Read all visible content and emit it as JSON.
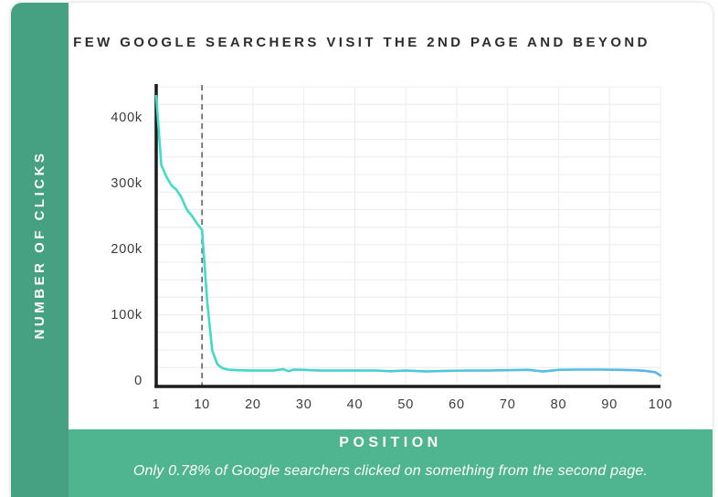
{
  "card": {
    "title": "FEW GOOGLE SEARCHERS VISIT THE 2ND PAGE AND BEYOND"
  },
  "colors": {
    "left_band": "#46A183",
    "bottom_band": "#4FB490",
    "line_gradient_start": "#3EDEC3",
    "line_gradient_end": "#58B6E8",
    "axis": "#1c1c1c",
    "grid": "#ececec",
    "dashed_line": "#6e6e6e",
    "tick_label": "#3b3b3b",
    "title_text": "#2d2d2d",
    "band_text": "#ffffff"
  },
  "chart_data": {
    "type": "line",
    "title": "FEW GOOGLE SEARCHERS VISIT THE 2ND PAGE AND BEYOND",
    "xlabel": "POSITION",
    "ylabel": "NUMBER OF CLICKS",
    "caption": "Only 0.78% of Google searchers clicked on something from the second page.",
    "xlim": [
      1,
      100
    ],
    "ylim": [
      0,
      450000
    ],
    "grid": true,
    "dashed_marker_x": 10,
    "x_ticks": [
      {
        "label": "1",
        "value": 1
      },
      {
        "label": "10",
        "value": 10
      },
      {
        "label": "20",
        "value": 20
      },
      {
        "label": "30",
        "value": 30
      },
      {
        "label": "40",
        "value": 40
      },
      {
        "label": "50",
        "value": 50
      },
      {
        "label": "60",
        "value": 60
      },
      {
        "label": "70",
        "value": 70
      },
      {
        "label": "80",
        "value": 80
      },
      {
        "label": "90",
        "value": 90
      },
      {
        "label": "100",
        "value": 100
      }
    ],
    "y_ticks": [
      {
        "label": "0",
        "value": 0
      },
      {
        "label": "100k",
        "value": 100000
      },
      {
        "label": "200k",
        "value": 200000
      },
      {
        "label": "300k",
        "value": 300000
      },
      {
        "label": "400k",
        "value": 400000
      }
    ],
    "series": [
      {
        "name": "clicks-by-position",
        "points": [
          [
            1,
            432000
          ],
          [
            2,
            327000
          ],
          [
            3,
            309000
          ],
          [
            4,
            296000
          ],
          [
            5,
            289000
          ],
          [
            6,
            277000
          ],
          [
            7,
            259000
          ],
          [
            8,
            250000
          ],
          [
            9,
            238000
          ],
          [
            10,
            228000
          ],
          [
            11,
            120000
          ],
          [
            12,
            45000
          ],
          [
            13,
            24000
          ],
          [
            14,
            18000
          ],
          [
            15,
            16000
          ],
          [
            17,
            15000
          ],
          [
            20,
            14500
          ],
          [
            24,
            14500
          ],
          [
            26,
            16500
          ],
          [
            27,
            13500
          ],
          [
            28,
            16000
          ],
          [
            30,
            15500
          ],
          [
            33,
            14500
          ],
          [
            36,
            14500
          ],
          [
            40,
            14500
          ],
          [
            44,
            14500
          ],
          [
            47,
            13500
          ],
          [
            50,
            14500
          ],
          [
            54,
            13000
          ],
          [
            58,
            14000
          ],
          [
            62,
            14500
          ],
          [
            66,
            14500
          ],
          [
            70,
            15000
          ],
          [
            74,
            15500
          ],
          [
            77,
            13000
          ],
          [
            80,
            15500
          ],
          [
            84,
            16000
          ],
          [
            88,
            16000
          ],
          [
            92,
            15500
          ],
          [
            95,
            15000
          ],
          [
            97,
            14000
          ],
          [
            99,
            12000
          ],
          [
            100,
            7000
          ]
        ]
      }
    ]
  }
}
